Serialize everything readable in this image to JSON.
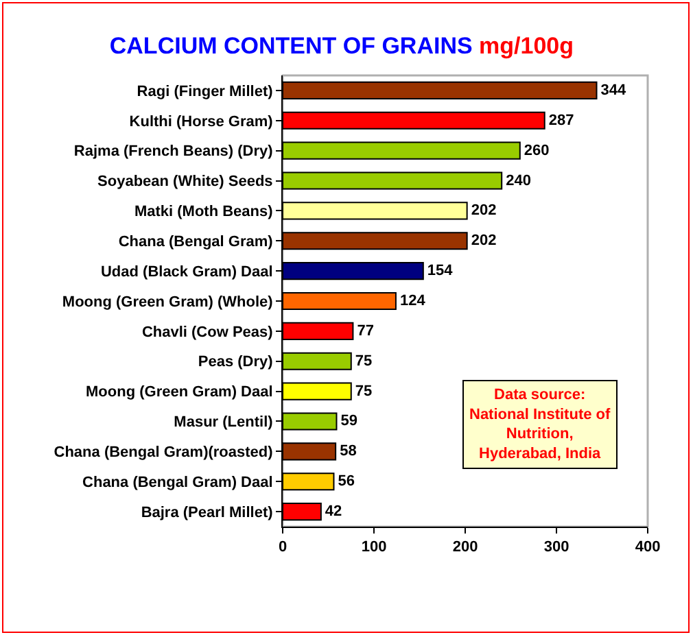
{
  "chart_data": {
    "type": "bar",
    "orientation": "horizontal",
    "title": "CALCIUM CONTENT OF GRAINS",
    "subtitle": "mg/100g",
    "categories": [
      "Ragi (Finger Millet)",
      "Kulthi (Horse Gram)",
      "Rajma (French Beans) (Dry)",
      "Soyabean (White) Seeds",
      "Matki (Moth Beans)",
      "Chana (Bengal Gram)",
      "Udad (Black Gram) Daal",
      "Moong (Green Gram) (Whole)",
      "Chavli (Cow Peas)",
      "Peas (Dry)",
      "Moong (Green Gram) Daal",
      "Masur (Lentil)",
      "Chana (Bengal Gram)(roasted)",
      "Chana (Bengal Gram) Daal",
      "Bajra (Pearl Millet)"
    ],
    "values": [
      344,
      287,
      260,
      240,
      202,
      202,
      154,
      124,
      77,
      75,
      75,
      59,
      58,
      56,
      42
    ],
    "colors": [
      "#993300",
      "#ff0000",
      "#99cc00",
      "#99cc00",
      "#ffff99",
      "#993300",
      "#000080",
      "#ff6600",
      "#ff0000",
      "#99cc00",
      "#ffff00",
      "#99cc00",
      "#993300",
      "#ffcc00",
      "#ff0000"
    ],
    "xlim": [
      0,
      400
    ],
    "xticks": [
      0,
      100,
      200,
      300,
      400
    ],
    "data_labels": true,
    "grid": false,
    "annotations": [
      "Data source:\nNational Institute of\nNutrition,\nHyderabad, India"
    ]
  }
}
